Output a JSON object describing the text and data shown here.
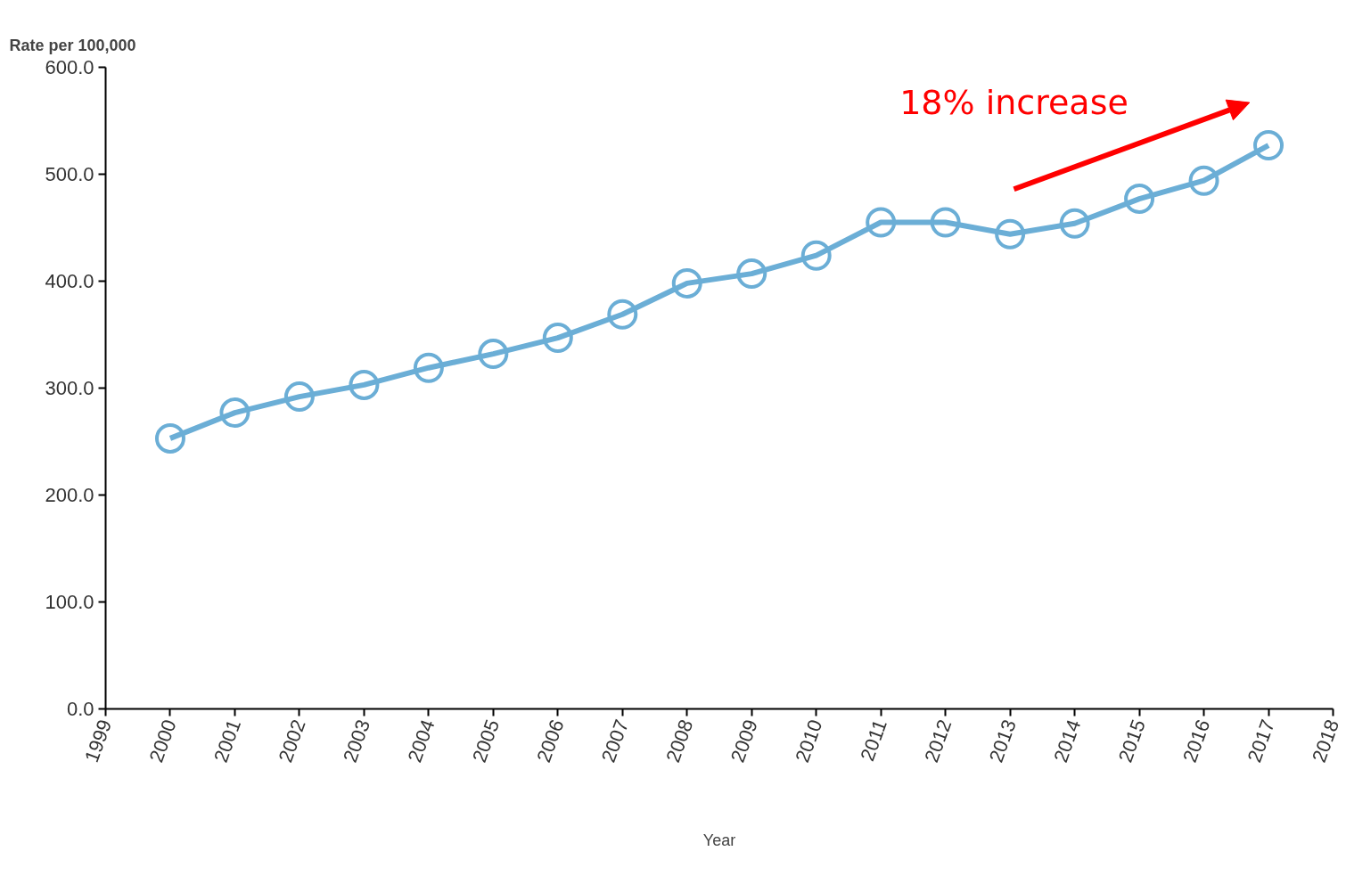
{
  "chart_data": {
    "type": "line",
    "xlabel": "Year",
    "ylabel": "Rate per 100,000",
    "x": [
      2000,
      2001,
      2002,
      2003,
      2004,
      2005,
      2006,
      2007,
      2008,
      2009,
      2010,
      2011,
      2012,
      2013,
      2014,
      2015,
      2016,
      2017
    ],
    "series": [
      {
        "color": "#6baed6",
        "values": [
          253,
          277,
          292,
          303,
          319,
          332,
          347,
          369,
          398,
          407,
          424,
          455,
          455,
          444,
          454,
          477,
          494,
          527
        ]
      }
    ],
    "xlim": [
      1999,
      2018
    ],
    "xticks": [
      1999,
      2000,
      2001,
      2002,
      2003,
      2004,
      2005,
      2006,
      2007,
      2008,
      2009,
      2010,
      2011,
      2012,
      2013,
      2014,
      2015,
      2016,
      2017,
      2018
    ],
    "ylim": [
      0,
      600
    ],
    "yticks": [
      {
        "value": 0,
        "label": "0.0"
      },
      {
        "value": 100,
        "label": "100.0"
      },
      {
        "value": 200,
        "label": "200.0"
      },
      {
        "value": 300,
        "label": "300.0"
      },
      {
        "value": 400,
        "label": "400.0"
      },
      {
        "value": 500,
        "label": "500.0"
      },
      {
        "value": 600,
        "label": "600.0"
      }
    ],
    "annotations": [
      "18% increase"
    ],
    "grid": false,
    "marker": "circle",
    "line_style": "solid"
  }
}
